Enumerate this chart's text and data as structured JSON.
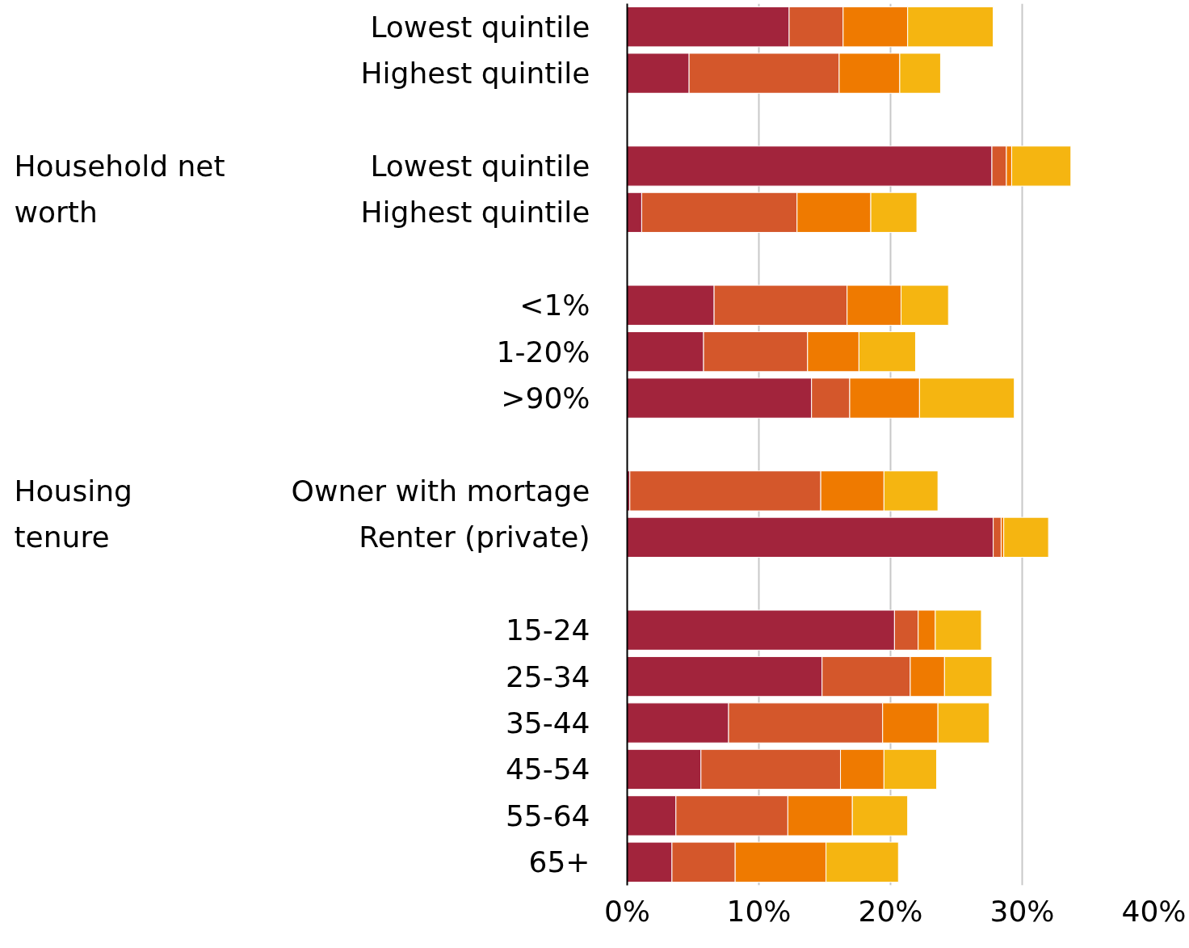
{
  "chart_data": {
    "type": "bar",
    "orientation": "horizontal",
    "stacked": true,
    "categories": [
      "Lowest quintile",
      "Highest quintile",
      null,
      "Lowest quintile",
      "Highest quintile",
      null,
      "<1%",
      "1-20%",
      ">90%",
      null,
      "Owner with mortage",
      "Renter (private)",
      null,
      "15-24",
      "25-34",
      "35-44",
      "45-54",
      "55-64",
      "65+"
    ],
    "series": [
      {
        "color": "#a2243c",
        "values": [
          12.3,
          4.7,
          null,
          27.7,
          1.1,
          null,
          6.6,
          5.8,
          14.0,
          null,
          0.2,
          27.8,
          null,
          20.3,
          14.8,
          7.7,
          5.6,
          3.7,
          3.4
        ]
      },
      {
        "color": "#d4572b",
        "values": [
          4.1,
          11.4,
          null,
          1.1,
          11.8,
          null,
          10.1,
          7.9,
          2.9,
          null,
          14.5,
          0.6,
          null,
          1.8,
          6.7,
          11.7,
          10.6,
          8.5,
          4.8
        ]
      },
      {
        "color": "#ef7a00",
        "values": [
          4.9,
          4.6,
          null,
          0.4,
          5.6,
          null,
          4.1,
          3.9,
          5.3,
          null,
          4.8,
          0.2,
          null,
          1.3,
          2.6,
          4.2,
          3.3,
          4.9,
          6.9
        ]
      },
      {
        "color": "#f5b511",
        "values": [
          6.5,
          3.1,
          null,
          4.5,
          3.5,
          null,
          3.6,
          4.3,
          7.2,
          null,
          4.1,
          3.4,
          null,
          3.5,
          3.6,
          3.9,
          4.0,
          4.2,
          5.5
        ]
      }
    ],
    "xlim": [
      0,
      40
    ],
    "xticks": [
      {
        "value": 0,
        "label": "0%"
      },
      {
        "value": 10,
        "label": "10%"
      },
      {
        "value": 20,
        "label": "20%"
      },
      {
        "value": 30,
        "label": "30%"
      },
      {
        "value": 40,
        "label": "40%"
      }
    ],
    "grid": "x",
    "annotations": [
      "Household net worth",
      "Housing tenure"
    ]
  }
}
